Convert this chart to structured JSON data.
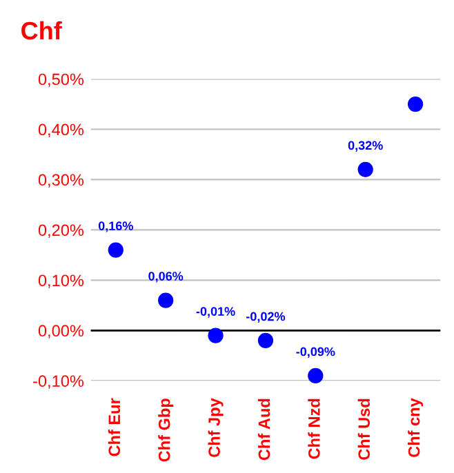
{
  "chart_data": {
    "type": "scatter",
    "title": "Chf",
    "categories": [
      "Chf Eur",
      "Chf Gbp",
      "Chf Jpy",
      "Chf Aud",
      "Chf Nzd",
      "Chf Usd",
      "Chf cny"
    ],
    "series": [
      {
        "color": "#0000ff",
        "values": [
          0.16,
          0.06,
          -0.01,
          -0.02,
          -0.09,
          0.32,
          0.45
        ],
        "value_labels": [
          "0,16%",
          "0,06%",
          "-0,01%",
          "-0,02%",
          "-0,09%",
          "0,32%",
          null
        ]
      }
    ],
    "ylim": [
      -0.1,
      0.5
    ],
    "yticks": [
      {
        "value": -0.1,
        "label": "-0,10%"
      },
      {
        "value": 0,
        "label": "0,00%"
      },
      {
        "value": 0.1,
        "label": "0,10%"
      },
      {
        "value": 0.2,
        "label": "0,20%"
      },
      {
        "value": 0.3,
        "label": "0,30%"
      },
      {
        "value": 0.4,
        "label": "0,40%"
      },
      {
        "value": 0.5,
        "label": "0,50%"
      }
    ],
    "ref_lines": [
      {
        "axis": "y",
        "value": 0,
        "color": "#000000"
      }
    ],
    "grid": "y",
    "marker": "circle",
    "legend": false
  }
}
